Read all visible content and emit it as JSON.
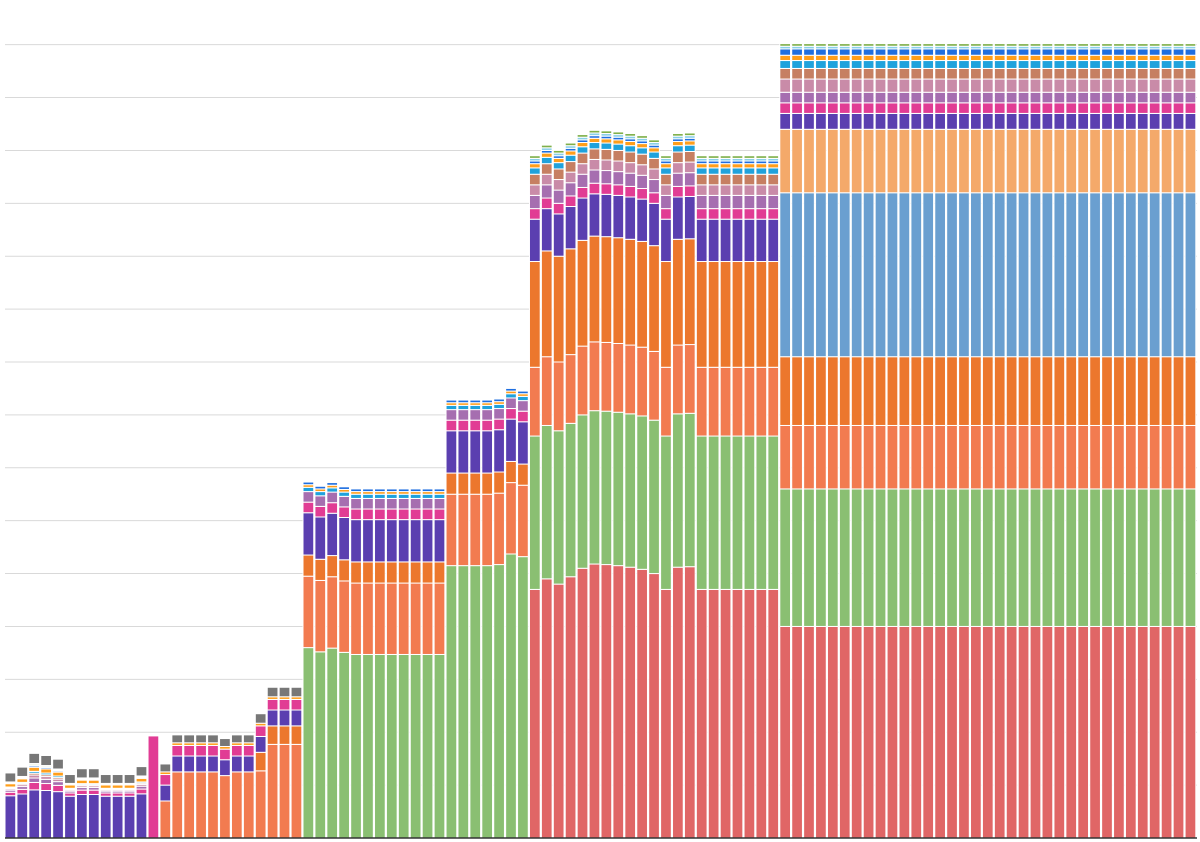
{
  "chart_data": {
    "type": "bar",
    "stacked": true,
    "ylim": [
      0,
      15
    ],
    "ytick_step": 1,
    "grid": true,
    "n_bars": 100,
    "colors": [
      "#e06666",
      "#8abf72",
      "#f27b50",
      "#ec772d",
      "#6a9fd0",
      "#f4a96a",
      "#5b3fb0",
      "#e13c94",
      "#a66eb0",
      "#c98ba8",
      "#c67f62",
      "#1fa2dc",
      "#ff9e1b",
      "#1f6fe0",
      "#89d0e8",
      "#7fb04a",
      "#e78fb3",
      "#777777"
    ],
    "groups": [
      {
        "from": 0,
        "to": 11,
        "start": 7,
        "base": [
          0,
          0,
          0,
          0,
          0,
          0,
          0.7,
          0,
          0,
          0,
          0,
          0,
          0.05,
          0,
          0,
          0,
          0,
          0.15
        ]
      },
      {
        "from": 12,
        "to": 12,
        "start": 7,
        "base": [
          0,
          0,
          0,
          0,
          0,
          0,
          0,
          0,
          0,
          0,
          0,
          0,
          0,
          0,
          0,
          0,
          0,
          0
        ]
      },
      {
        "from": 13,
        "to": 20,
        "start": 2,
        "base": [
          0,
          0,
          0.7,
          0,
          0,
          0,
          0.3,
          0.2,
          0,
          0,
          0,
          0,
          0.05,
          0,
          0,
          0,
          0,
          0.15
        ]
      },
      {
        "from": 21,
        "to": 24,
        "start": 2,
        "base": [
          0,
          0,
          1.2,
          0.35,
          0,
          0,
          0.3,
          0.2,
          0,
          0,
          0,
          0,
          0.05,
          0,
          0,
          0,
          0,
          0.18
        ]
      },
      {
        "from": 25,
        "to": 43,
        "start": 1,
        "base": [
          0,
          3.3,
          1.35,
          0.4,
          0,
          0,
          0.8,
          0.2,
          0.2,
          0,
          0,
          0.08,
          0.05,
          0.05,
          0,
          0,
          0,
          0
        ]
      },
      {
        "from": 44,
        "to": 64,
        "start": 0,
        "base": [
          4.7,
          2.9,
          1.3,
          2.0,
          0,
          0,
          0.8,
          0.2,
          0.25,
          0.2,
          0.2,
          0.12,
          0.08,
          0.05,
          0.05,
          0.05,
          0,
          0
        ]
      },
      {
        "from": 65,
        "to": 99,
        "start": 0,
        "base": [
          4,
          2.6,
          1.2,
          1.3,
          3.1,
          1.2,
          0.3,
          0.2,
          0.2,
          0.25,
          0.2,
          0.15,
          0.1,
          0.12,
          0.05,
          0.05,
          0,
          0
        ]
      }
    ],
    "totals": [
      1.23,
      1.34,
      1.6,
      1.56,
      1.49,
      1.2,
      1.31,
      1.31,
      1.2,
      1.2,
      1.2,
      1.35,
      1.93,
      1.2,
      1.95,
      1.95,
      1.95,
      1.95,
      1.88,
      1.95,
      1.95,
      2.35,
      2.85,
      2.85,
      2.85,
      6.73,
      6.65,
      6.72,
      6.64,
      6.6,
      6.6,
      6.6,
      6.6,
      6.6,
      6.6,
      6.6,
      6.6,
      8.28,
      8.28,
      8.28,
      8.28,
      8.3,
      8.5,
      8.45,
      8.35,
      13.1,
      13.0,
      13.14,
      13.3,
      13.38,
      13.37,
      13.35,
      13.32,
      13.28,
      13.2,
      12.7,
      13.32,
      13.33,
      12.8,
      12.55,
      12.55,
      12.45,
      12.45,
      12.3,
      11.97,
      15.0,
      14.92,
      14.6,
      14.6,
      14.6,
      14.6,
      14.65,
      14.55,
      14.5,
      14.42,
      14.38,
      14.35,
      14.35,
      14.35,
      14.42,
      14.3,
      14.35,
      14.35,
      14.5,
      14.55,
      14.43,
      14.55,
      14.48,
      14.5,
      14.5,
      14.5,
      14.45,
      14.18,
      14.38,
      14.4,
      14.7,
      14.7,
      14.7,
      14.7,
      14.7,
      14.28
    ]
  }
}
